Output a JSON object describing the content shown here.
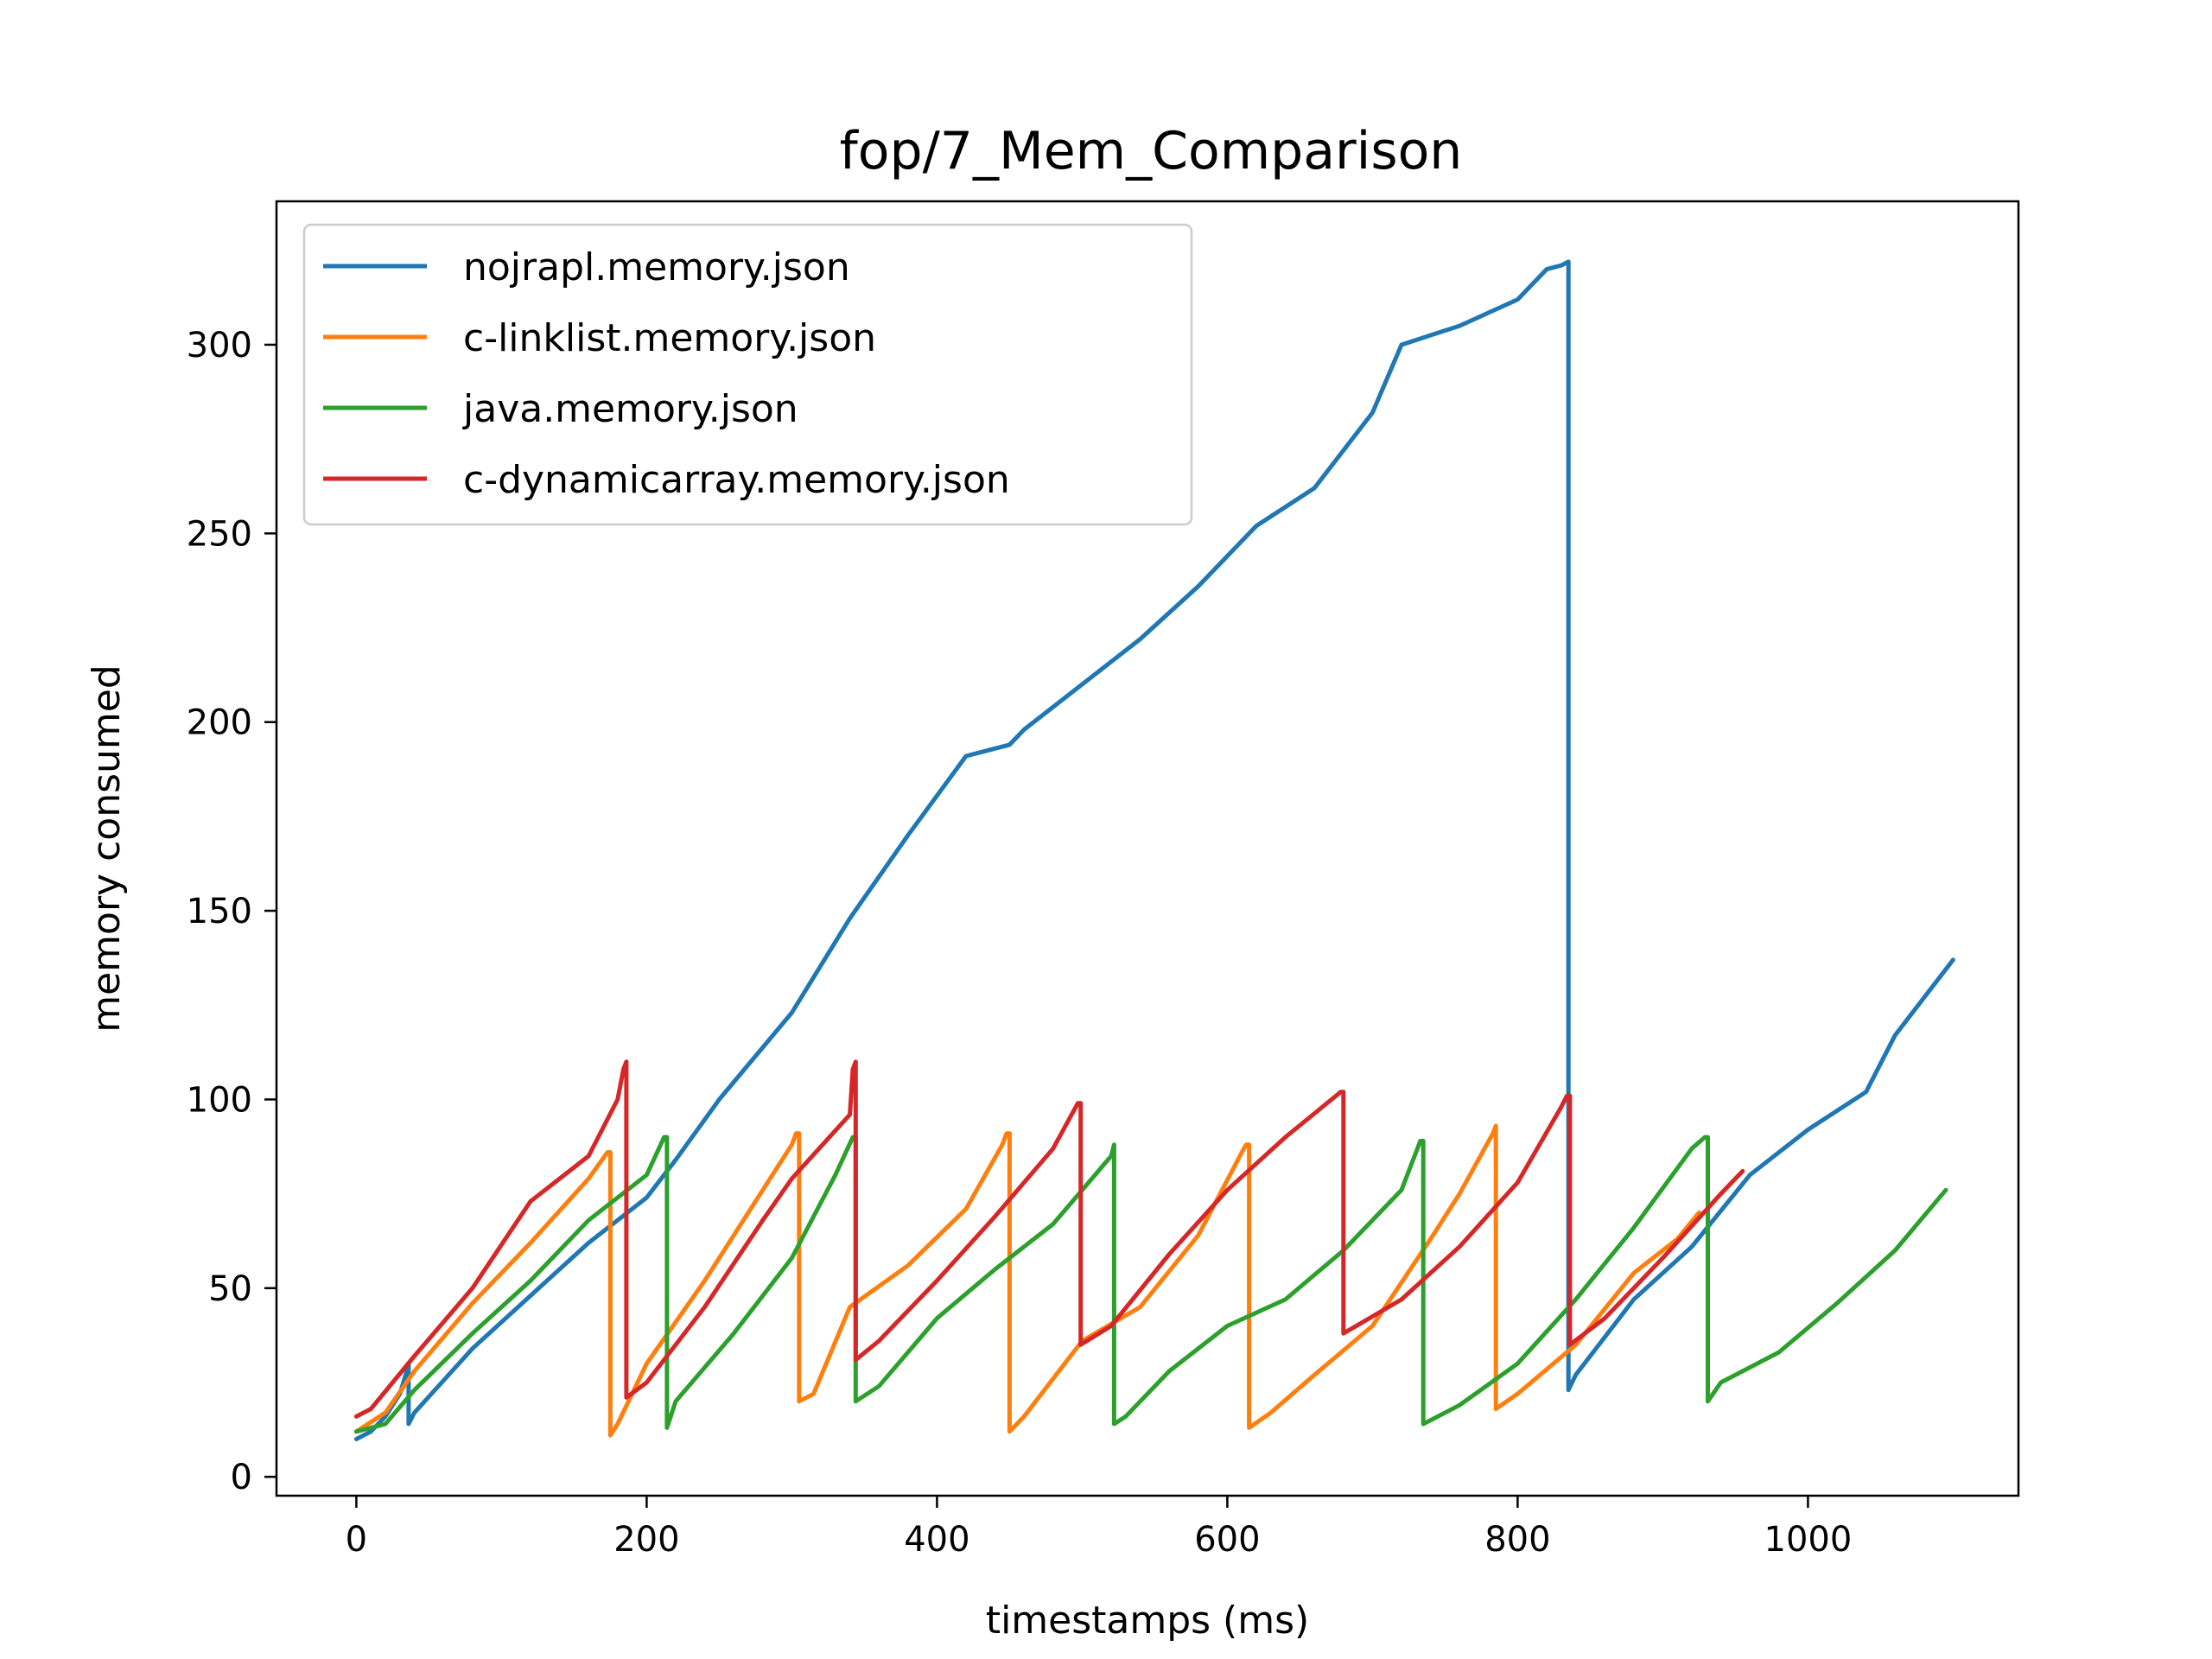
{
  "chart_data": {
    "type": "line",
    "title": "fop/7_Mem_Comparison",
    "xlabel": "timestamps (ms)",
    "ylabel": "memory consumed",
    "xlim": [
      -55,
      1145
    ],
    "ylim": [
      -5,
      338
    ],
    "xticks": [
      0,
      200,
      400,
      600,
      800,
      1000
    ],
    "xtick_labels": [
      "0",
      "200",
      "400",
      "600",
      "800",
      "1000"
    ],
    "yticks": [
      0,
      50,
      100,
      150,
      200,
      250,
      300
    ],
    "ytick_labels": [
      "0",
      "50",
      "100",
      "150",
      "200",
      "250",
      "300"
    ],
    "grid": false,
    "legend_position": "upper-left",
    "series": [
      {
        "name": "nojrapl.memory.json",
        "color": "#1f77b4",
        "x": [
          0,
          10,
          20,
          30,
          34,
          36,
          36,
          40,
          80,
          120,
          160,
          200,
          220,
          250,
          300,
          340,
          380,
          420,
          450,
          460,
          500,
          540,
          580,
          620,
          660,
          700,
          720,
          760,
          800,
          820,
          830,
          835,
          835,
          840,
          880,
          920,
          960,
          1000,
          1040,
          1060,
          1100
        ],
        "y": [
          10,
          12,
          16,
          22,
          27,
          30,
          14,
          17,
          34,
          48,
          62,
          74,
          84,
          100,
          123,
          148,
          170,
          191,
          194,
          198,
          210,
          222,
          236,
          252,
          262,
          282,
          300,
          305,
          312,
          320,
          321,
          322,
          23,
          27,
          47,
          61,
          80,
          92,
          102,
          117,
          137
        ]
      },
      {
        "name": "c-linklist.memory.json",
        "color": "#ff7f0e",
        "x": [
          0,
          20,
          40,
          80,
          120,
          160,
          173,
          175,
          175,
          180,
          200,
          240,
          280,
          300,
          303,
          305,
          305,
          315,
          340,
          380,
          420,
          445,
          448,
          450,
          450,
          460,
          500,
          540,
          580,
          610,
          613,
          615,
          615,
          630,
          660,
          700,
          740,
          760,
          783,
          785,
          785,
          800,
          840,
          880,
          910,
          925
        ],
        "y": [
          12,
          17,
          28,
          46,
          62,
          79,
          86,
          86,
          11,
          14,
          30,
          52,
          76,
          88,
          91,
          91,
          20,
          22,
          45,
          56,
          71,
          88,
          91,
          91,
          12,
          16,
          36,
          45,
          64,
          86,
          88,
          88,
          13,
          17,
          27,
          40,
          63,
          75,
          91,
          93,
          18,
          22,
          35,
          54,
          63,
          70
        ]
      },
      {
        "name": "java.memory.json",
        "color": "#2ca02c",
        "x": [
          0,
          20,
          40,
          80,
          120,
          160,
          200,
          212,
          214,
          214,
          220,
          260,
          300,
          330,
          342,
          344,
          344,
          360,
          400,
          440,
          480,
          520,
          522,
          522,
          530,
          560,
          600,
          640,
          680,
          720,
          733,
          735,
          735,
          760,
          800,
          840,
          880,
          920,
          929,
          931,
          931,
          940,
          980,
          1020,
          1060,
          1095
        ],
        "y": [
          12,
          14,
          23,
          38,
          52,
          68,
          80,
          90,
          90,
          13,
          20,
          38,
          58,
          80,
          90,
          90,
          20,
          24,
          42,
          55,
          67,
          85,
          88,
          14,
          16,
          28,
          40,
          47,
          60,
          76,
          89,
          89,
          14,
          19,
          30,
          47,
          66,
          87,
          90,
          90,
          20,
          25,
          33,
          46,
          60,
          76
        ]
      },
      {
        "name": "c-dynamicarray.memory.json",
        "color": "#d62728",
        "x": [
          0,
          10,
          40,
          80,
          120,
          160,
          180,
          184,
          186,
          186,
          200,
          240,
          280,
          300,
          340,
          342,
          344,
          344,
          360,
          400,
          440,
          480,
          497,
          499,
          499,
          520,
          560,
          600,
          640,
          675,
          678,
          680,
          680,
          720,
          760,
          800,
          830,
          834,
          836,
          836,
          860,
          900,
          940,
          955
        ],
        "y": [
          16,
          18,
          32,
          50,
          73,
          85,
          100,
          108,
          110,
          21,
          25,
          45,
          68,
          79,
          96,
          108,
          110,
          31,
          36,
          52,
          69,
          87,
          99,
          99,
          35,
          40,
          59,
          76,
          90,
          101,
          102,
          102,
          38,
          47,
          61,
          78,
          98,
          101,
          101,
          35,
          42,
          58,
          75,
          81
        ]
      }
    ]
  }
}
